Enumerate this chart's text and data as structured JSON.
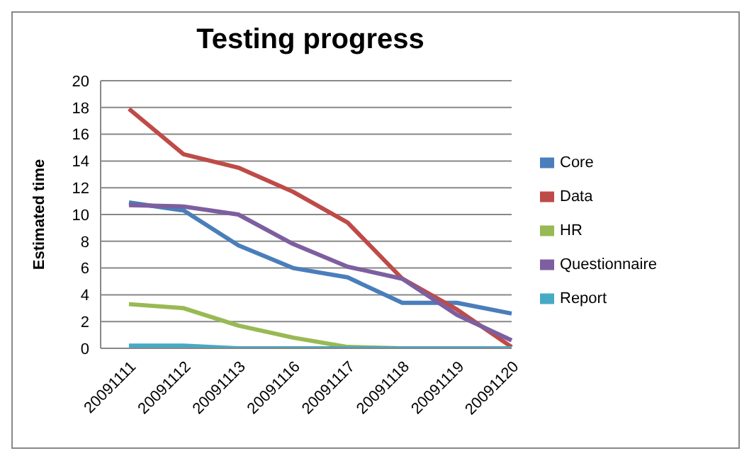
{
  "chart_data": {
    "type": "line",
    "title": "Testing progress",
    "ylabel": "Estimated time",
    "categories": [
      "20091111",
      "20091112",
      "20091113",
      "20091116",
      "20091117",
      "20091118",
      "20091119",
      "20091120"
    ],
    "series": [
      {
        "name": "Core",
        "color": "#4a7ebb",
        "values": [
          10.9,
          10.3,
          7.7,
          6.0,
          5.3,
          3.4,
          3.4,
          2.6
        ]
      },
      {
        "name": "Data",
        "color": "#be4b48",
        "values": [
          17.9,
          14.5,
          13.5,
          11.7,
          9.4,
          5.2,
          2.9,
          0.1
        ]
      },
      {
        "name": "HR",
        "color": "#98b954",
        "values": [
          3.3,
          3.0,
          1.7,
          0.8,
          0.1,
          0,
          0,
          0
        ]
      },
      {
        "name": "Questionnaire",
        "color": "#7d5fa0",
        "values": [
          10.7,
          10.6,
          10.0,
          7.8,
          6.1,
          5.2,
          2.5,
          0.6
        ]
      },
      {
        "name": "Report",
        "color": "#46aac5",
        "values": [
          0.2,
          0.2,
          0,
          0,
          0,
          0,
          0,
          0
        ]
      }
    ],
    "ylim": [
      0,
      20
    ],
    "yticks": [
      0,
      2,
      4,
      6,
      8,
      10,
      12,
      14,
      16,
      18,
      20
    ],
    "grid": "y",
    "legend": "right",
    "marker": "none",
    "line_style": "solid"
  }
}
